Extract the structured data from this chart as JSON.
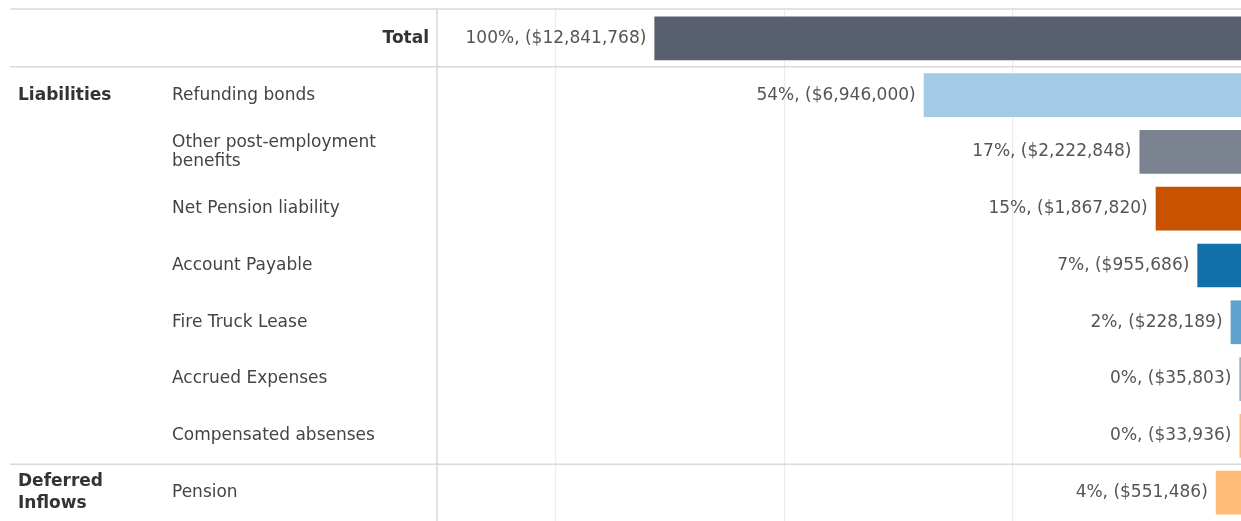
{
  "chart_data": {
    "type": "bar",
    "orientation": "horizontal",
    "categories": [
      "Total",
      "Refunding bonds",
      "Other post-employment benefits",
      "Net Pension liability",
      "Account Payable",
      "Fire Truck Lease",
      "Accrued Expenses",
      "Compensated absenses",
      "Pension"
    ],
    "values": [
      12841768,
      6946000,
      2222848,
      1867820,
      955686,
      228189,
      35803,
      33936,
      551486
    ],
    "colors": [
      "#585f6e",
      "#a3cbe8",
      "#7b8290",
      "#c85200",
      "#1170aa",
      "#5fa2ce",
      "#a3acb9",
      "#ffbc79",
      "#ffbc79"
    ],
    "value_labels": [
      "100%, ($12,841,768)",
      "54%, ($6,946,000)",
      "17%, ($2,222,848)",
      "15%, ($1,867,820)",
      "7%, ($955,686)",
      "2%, ($228,189)",
      "0%, ($35,803)",
      "0%, ($33,936)",
      "4%, ($551,486)"
    ],
    "annotations": [
      "Liabilities",
      "Deferred Inflows"
    ],
    "xlim": [
      17600000,
      0
    ],
    "xticks": [
      {
        "value": 15000000,
        "label": null
      },
      {
        "value": 10000000,
        "label": null
      },
      {
        "value": 5000000,
        "label": null
      }
    ],
    "grid": "x",
    "legend": false,
    "tick_labels": "y"
  }
}
